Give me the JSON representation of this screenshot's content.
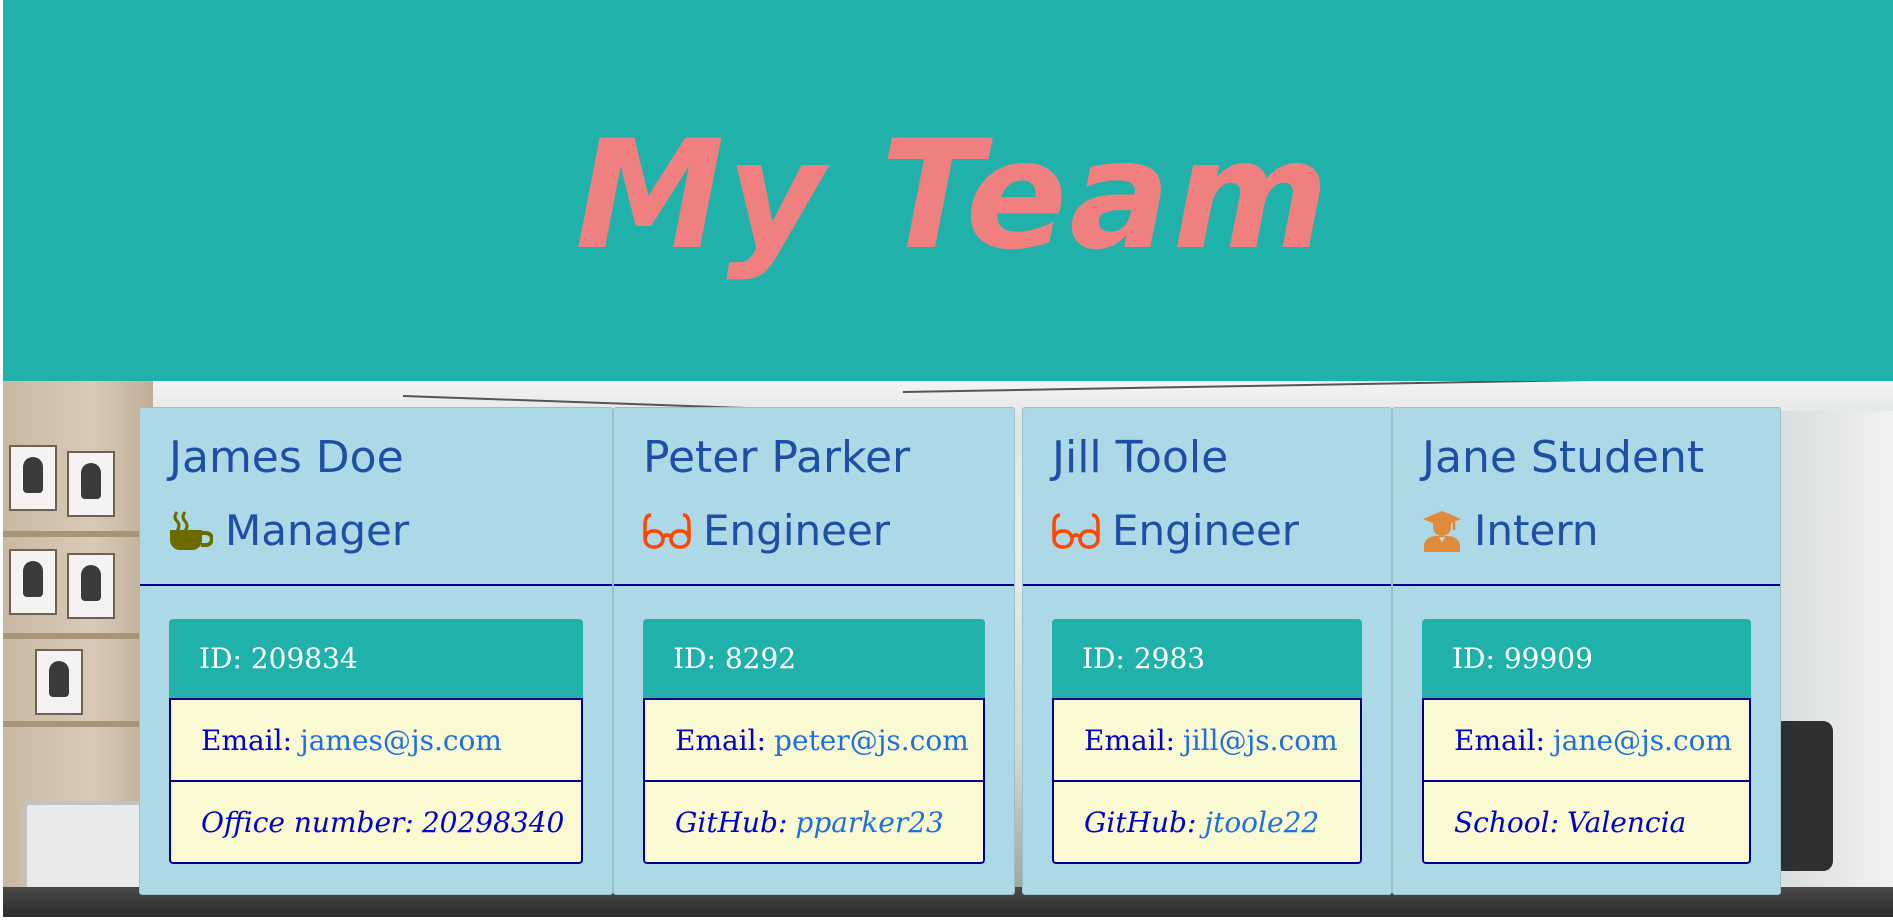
{
  "header": {
    "title": "My Team"
  },
  "colors": {
    "header_bg": "#20b2aa",
    "title": "#f08080",
    "card_bg": "#add8e6",
    "name_text": "#1e4fa6",
    "info_bg": "#fafad2",
    "link": "#1e6fe0",
    "manager_icon": "#6b6b00",
    "engineer_icon": "#ff4500",
    "intern_icon": "#e08a3c"
  },
  "team": [
    {
      "name": "James Doe",
      "role": "Manager",
      "icon": "coffee-icon",
      "id_text": "ID: 209834",
      "email_label": "Email:",
      "email": "james@js.com",
      "extra_label": "Office number:",
      "extra_value": "20298340"
    },
    {
      "name": "Peter Parker",
      "role": "Engineer",
      "icon": "glasses-icon",
      "id_text": "ID: 8292",
      "email_label": "Email:",
      "email": "peter@js.com",
      "extra_label": "GitHub:",
      "extra_value": "pparker23"
    },
    {
      "name": "Jill Toole",
      "role": "Engineer",
      "icon": "glasses-icon",
      "id_text": "ID: 2983",
      "email_label": "Email:",
      "email": "jill@js.com",
      "extra_label": "GitHub:",
      "extra_value": "jtoole22"
    },
    {
      "name": "Jane Student",
      "role": "Intern",
      "icon": "graduate-icon",
      "id_text": "ID: 99909",
      "email_label": "Email:",
      "email": "jane@js.com",
      "extra_label": "School:",
      "extra_value": "Valencia"
    }
  ]
}
